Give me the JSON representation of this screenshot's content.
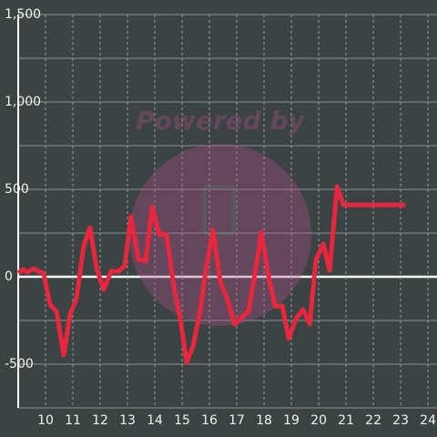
{
  "chart_data": {
    "type": "line",
    "watermark": "Powered by",
    "xlim": [
      9,
      24.33
    ],
    "ylim": [
      -750,
      1500
    ],
    "xticks": [
      10,
      11,
      12,
      13,
      14,
      15,
      16,
      17,
      18,
      19,
      20,
      21,
      22,
      23,
      24
    ],
    "yticks": [
      -500,
      0,
      500,
      {
        "value": 1000,
        "label": "1,000"
      },
      {
        "value": 1500,
        "label": "1,500"
      }
    ],
    "y_minor_grid": [
      -750,
      -250,
      250,
      750,
      1250
    ],
    "grid": true,
    "series": [
      {
        "color": "#e8273f",
        "x": [
          9.0,
          9.17,
          9.33,
          9.57,
          9.73,
          9.93,
          10.17,
          10.4,
          10.67,
          10.9,
          11.13,
          11.4,
          11.63,
          11.87,
          12.13,
          12.4,
          12.67,
          12.9,
          13.13,
          13.4,
          13.67,
          13.9,
          14.17,
          14.43,
          14.7,
          14.93,
          15.17,
          15.4,
          15.67,
          15.87,
          16.13,
          16.4,
          16.67,
          16.93,
          17.2,
          17.43,
          17.67,
          17.9,
          18.17,
          18.4,
          18.67,
          18.9,
          19.17,
          19.43,
          19.67,
          19.9,
          20.17,
          20.4,
          20.67,
          20.9,
          21.17,
          23.17
        ],
        "values": [
          21,
          42,
          26,
          47,
          31,
          21,
          -161,
          -198,
          -448,
          -214,
          -125,
          177,
          281,
          47,
          -73,
          31,
          31,
          63,
          344,
          99,
          89,
          401,
          240,
          240,
          -57,
          -240,
          -490,
          -396,
          -188,
          42,
          266,
          -31,
          -135,
          -271,
          -229,
          -198,
          21,
          255,
          0,
          -167,
          -167,
          -354,
          -240,
          -188,
          -271,
          99,
          188,
          36,
          516,
          411,
          411,
          411
        ]
      }
    ]
  }
}
